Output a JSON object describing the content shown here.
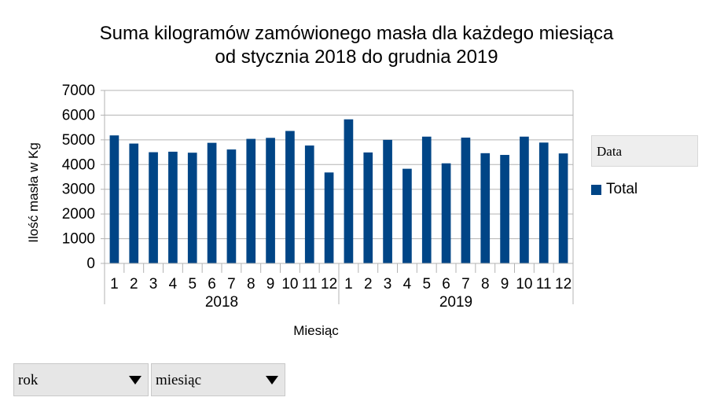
{
  "chart_data": {
    "type": "bar",
    "title_line1": "Suma kilogramów zamówionego masła dla każdego miesiąca",
    "title_line2": "od stycznia 2018 do grudnia 2019",
    "xlabel": "Miesiąc",
    "ylabel": "Ilość masła w Kg",
    "ylim": [
      0,
      7000
    ],
    "yticks": [
      0,
      1000,
      2000,
      3000,
      4000,
      5000,
      6000,
      7000
    ],
    "grid": true,
    "legend_position": "right",
    "legend_title": "Data",
    "groups": [
      {
        "label": "2018",
        "categories": [
          "1",
          "2",
          "3",
          "4",
          "5",
          "6",
          "7",
          "8",
          "9",
          "10",
          "11",
          "12"
        ],
        "values": [
          5180,
          4850,
          4500,
          4520,
          4480,
          4880,
          4610,
          5040,
          5080,
          5360,
          4770,
          3680
        ]
      },
      {
        "label": "2019",
        "categories": [
          "1",
          "2",
          "3",
          "4",
          "5",
          "6",
          "7",
          "8",
          "9",
          "10",
          "11",
          "12"
        ],
        "values": [
          5830,
          4490,
          5000,
          3830,
          5130,
          4050,
          5090,
          4460,
          4390,
          5130,
          4890,
          4450
        ]
      }
    ],
    "series": [
      {
        "name": "Total",
        "color": "#004586"
      }
    ]
  },
  "controls": {
    "year_dropdown": "rok",
    "month_dropdown": "miesiąc"
  }
}
